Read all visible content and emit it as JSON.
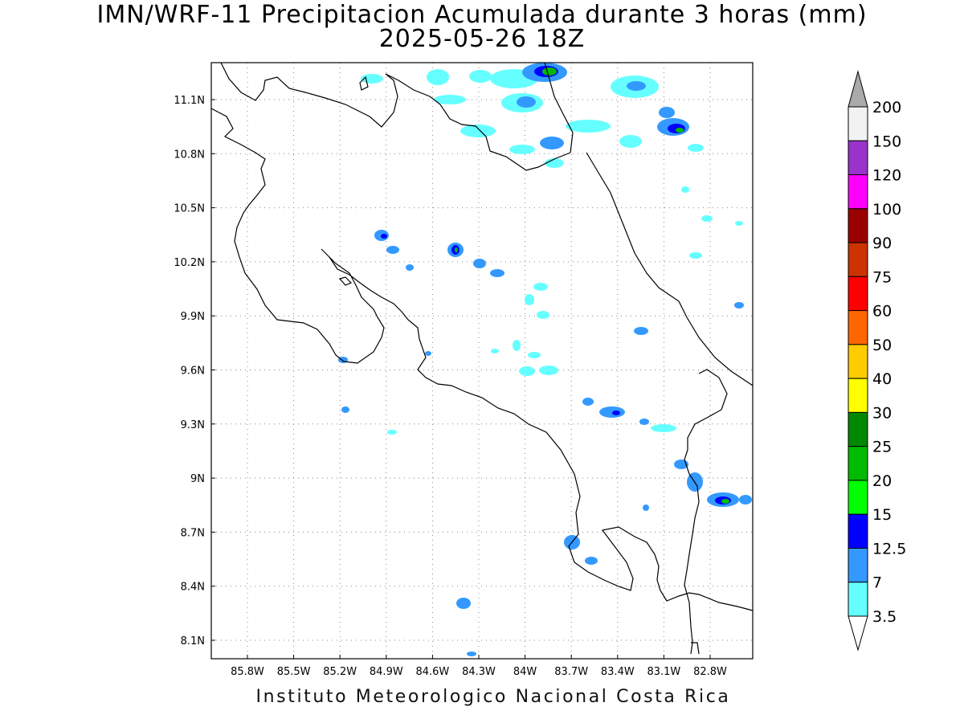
{
  "title_line1": "IMN/WRF-11 Precipitacion Acumulada durante 3 horas (mm)",
  "title_line2": "2025-05-26 18Z",
  "footer": "Instituto Meteorologico Nacional Costa Rica",
  "map": {
    "lon_labels": [
      "85.8W",
      "85.5W",
      "85.2W",
      "84.9W",
      "84.6W",
      "84.3W",
      "84W",
      "83.7W",
      "83.4W",
      "83.1W",
      "82.8W"
    ],
    "lat_labels": [
      "11.1N",
      "10.8N",
      "10.5N",
      "10.2N",
      "9.9N",
      "9.6N",
      "9.3N",
      "9N",
      "8.7N",
      "8.4N",
      "8.1N"
    ],
    "grid": "dotted"
  },
  "colorbar": {
    "levels": [
      "200",
      "150",
      "120",
      "100",
      "90",
      "75",
      "60",
      "50",
      "40",
      "30",
      "25",
      "20",
      "15",
      "12.5",
      "7",
      "3.5"
    ],
    "colors": [
      "#f2f2f2",
      "#9933cc",
      "#ff00ff",
      "#990000",
      "#cc3300",
      "#ff0000",
      "#ff6600",
      "#ffcc00",
      "#ffff00",
      "#008800",
      "#00bb00",
      "#00ff00",
      "#0000ff",
      "#3399ff",
      "#66ffff"
    ],
    "top_triangle_color": "#aaaaaa",
    "bottom_triangle_color": "#ffffff"
  }
}
